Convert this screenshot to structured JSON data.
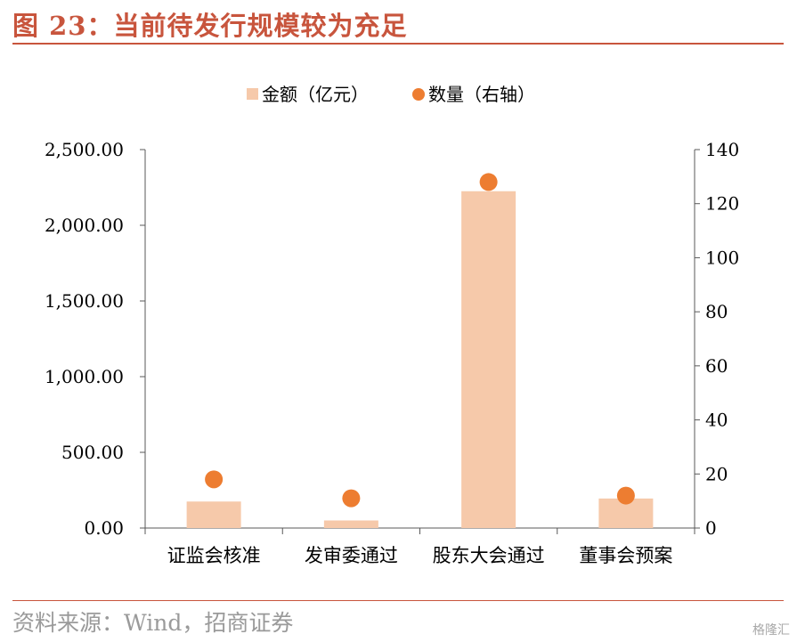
{
  "header": {
    "title": "图 23：当前待发行规模较为充足"
  },
  "footer": {
    "source": "资料来源：Wind，招商证券",
    "watermark": "格隆汇"
  },
  "colors": {
    "bar": "#f6c9aa",
    "dot": "#ed7d31",
    "accent": "#c8553d"
  },
  "chart_data": {
    "type": "bar",
    "categories": [
      "证监会核准",
      "发审委通过",
      "股东大会通过",
      "董事会预案"
    ],
    "series": [
      {
        "name": "金额（亿元）",
        "type": "bar",
        "axis": "left",
        "values": [
          175,
          50,
          2225,
          195
        ]
      },
      {
        "name": "数量（右轴）",
        "type": "scatter",
        "axis": "right",
        "values": [
          18,
          11,
          128,
          12
        ]
      }
    ],
    "y_left": {
      "ylim": [
        0,
        2500
      ],
      "ticks": [
        "0.00",
        "500.00",
        "1,000.00",
        "1,500.00",
        "2,000.00",
        "2,500.00"
      ]
    },
    "y_right": {
      "ylim": [
        0,
        140
      ],
      "ticks": [
        "0",
        "20",
        "40",
        "60",
        "80",
        "100",
        "120",
        "140"
      ]
    },
    "grid": false,
    "legend": "top-center"
  }
}
